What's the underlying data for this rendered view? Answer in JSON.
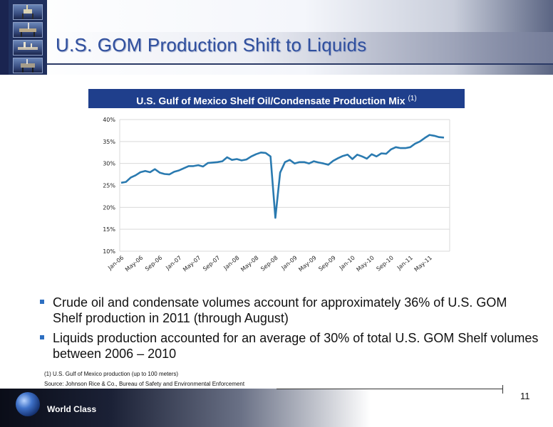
{
  "header": {
    "title": "U.S. GOM Production Shift to Liquids"
  },
  "chart_header": {
    "title": "U.S. Gulf of Mexico Shelf Oil/Condensate Production Mix",
    "footnote_ref": "(1)"
  },
  "chart_data": {
    "type": "line",
    "title": "U.S. Gulf of Mexico Shelf Oil/Condensate Production Mix",
    "xlabel": "",
    "ylabel": "",
    "ylim": [
      10,
      40
    ],
    "grid": true,
    "y_ticks": [
      "40%",
      "35%",
      "30%",
      "25%",
      "20%",
      "15%",
      "10%"
    ],
    "x_ticks": [
      "Jan-06",
      "May-06",
      "Sep-06",
      "Jan-07",
      "May-07",
      "Sep-07",
      "Jan-08",
      "May-08",
      "Sep-08",
      "Jan-09",
      "May-09",
      "Sep-09",
      "Jan-10",
      "May-10",
      "Sep-10",
      "Jan-11",
      "May-11"
    ],
    "x": [
      "Jan-06",
      "Feb-06",
      "Mar-06",
      "Apr-06",
      "May-06",
      "Jun-06",
      "Jul-06",
      "Aug-06",
      "Sep-06",
      "Oct-06",
      "Nov-06",
      "Dec-06",
      "Jan-07",
      "Feb-07",
      "Mar-07",
      "Apr-07",
      "May-07",
      "Jun-07",
      "Jul-07",
      "Aug-07",
      "Sep-07",
      "Oct-07",
      "Nov-07",
      "Dec-07",
      "Jan-08",
      "Feb-08",
      "Mar-08",
      "Apr-08",
      "May-08",
      "Jun-08",
      "Jul-08",
      "Aug-08",
      "Sep-08",
      "Oct-08",
      "Nov-08",
      "Dec-08",
      "Jan-09",
      "Feb-09",
      "Mar-09",
      "Apr-09",
      "May-09",
      "Jun-09",
      "Jul-09",
      "Aug-09",
      "Sep-09",
      "Oct-09",
      "Nov-09",
      "Dec-09",
      "Jan-10",
      "Feb-10",
      "Mar-10",
      "Apr-10",
      "May-10",
      "Jun-10",
      "Jul-10",
      "Aug-10",
      "Sep-10",
      "Oct-10",
      "Nov-10",
      "Dec-10",
      "Jan-11",
      "Feb-11",
      "Mar-11",
      "Apr-11",
      "May-11",
      "Jun-11",
      "Jul-11",
      "Aug-11"
    ],
    "series": [
      {
        "values": [
          25.6,
          25.8,
          26.8,
          27.3,
          28.0,
          28.3,
          28.0,
          28.7,
          27.9,
          27.6,
          27.5,
          28.1,
          28.4,
          28.9,
          29.4,
          29.4,
          29.6,
          29.3,
          30.1,
          30.2,
          30.3,
          30.5,
          31.4,
          30.8,
          31.0,
          30.7,
          30.9,
          31.6,
          32.1,
          32.5,
          32.4,
          31.6,
          17.6,
          27.9,
          30.3,
          30.8,
          30.0,
          30.3,
          30.3,
          30.0,
          30.5,
          30.2,
          30.0,
          29.7,
          30.6,
          31.2,
          31.7,
          32.0,
          31.0,
          32.0,
          31.6,
          31.1,
          32.1,
          31.6,
          32.3,
          32.2,
          33.2,
          33.7,
          33.5,
          33.5,
          33.7,
          34.5,
          35.0,
          35.8,
          36.5,
          36.3,
          36.0,
          35.9
        ]
      }
    ],
    "line_color": "#2a7ab0"
  },
  "bullets": [
    "Crude oil and condensate volumes account for approximately 36% of U.S. GOM Shelf production in 2011 (through August)",
    "Liquids production accounted for an average of 30% of total U.S. GOM Shelf volumes between 2006 – 2010"
  ],
  "footnotes": [
    "(1) U.S. Gulf of Mexico production (up to 100 meters)",
    "Source: Johnson Rice & Co., Bureau of Safety and Environmental Enforcement"
  ],
  "page_number": "11",
  "footer": {
    "brand_text": "World Class"
  },
  "colors": {
    "title_blue": "#2f4f9e",
    "chart_header_bg": "#1f3f8c",
    "bullet_square": "#2d6fc1"
  }
}
